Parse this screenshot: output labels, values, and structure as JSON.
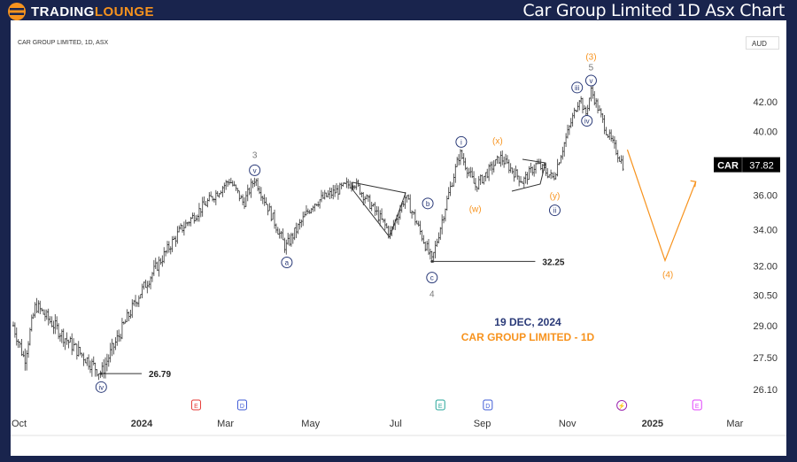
{
  "header": {
    "brand_main": "TRADING",
    "brand_accent": "LOUNGE",
    "title": "Car Group Limited 1D Asx Chart"
  },
  "chart_meta": {
    "symbol_line": "CAR GROUP LIMITED, 1D, ASX",
    "currency": "AUD",
    "ticker": "CAR",
    "last_price": "37.82"
  },
  "annotation": {
    "date": "19 DEC, 2024",
    "subtitle": "CAR GROUP LIMITED - 1D"
  },
  "colors": {
    "frame": "#19244d",
    "orange": "#f7931e",
    "navy": "#2a3a78",
    "wave_gray": "#777777"
  },
  "chart_data": {
    "type": "ohlc",
    "scale": "log",
    "title": "Car Group Limited 1D Asx Chart",
    "y_ticks": [
      "42.00",
      "40.00",
      "36.00",
      "34.00",
      "32.00",
      "30.50",
      "29.00",
      "27.50",
      "26.10"
    ],
    "y_tick_values": [
      42,
      40,
      36,
      34,
      32,
      30.5,
      29,
      27.5,
      26.1
    ],
    "x_ticks": [
      {
        "label": "Oct",
        "day": 0
      },
      {
        "label": "2024",
        "day": 92
      },
      {
        "label": "Mar",
        "day": 152
      },
      {
        "label": "May",
        "day": 213
      },
      {
        "label": "Jul",
        "day": 274
      },
      {
        "label": "Sep",
        "day": 336
      },
      {
        "label": "Nov",
        "day": 397
      },
      {
        "label": "2025",
        "day": 458
      },
      {
        "label": "Mar",
        "day": 517
      }
    ],
    "ylim": [
      25.6,
      45
    ],
    "xlim": [
      0,
      555
    ],
    "price_pivots": [
      [
        0,
        29.0
      ],
      [
        8,
        27.4
      ],
      [
        16,
        30.0
      ],
      [
        40,
        28.2
      ],
      [
        63,
        26.79
      ],
      [
        90,
        30.5
      ],
      [
        120,
        34.0
      ],
      [
        155,
        36.9
      ],
      [
        165,
        35.5
      ],
      [
        173,
        37.0
      ],
      [
        195,
        33.0
      ],
      [
        215,
        35.5
      ],
      [
        244,
        36.8
      ],
      [
        270,
        33.8
      ],
      [
        281,
        35.9
      ],
      [
        300,
        32.25
      ],
      [
        320,
        38.6
      ],
      [
        331,
        36.5
      ],
      [
        349,
        38.3
      ],
      [
        365,
        36.8
      ],
      [
        375,
        37.9
      ],
      [
        387,
        37.0
      ],
      [
        406,
        42.4
      ],
      [
        410,
        41.0
      ],
      [
        414,
        42.8
      ],
      [
        425,
        40.0
      ],
      [
        437,
        37.82
      ]
    ],
    "levels": [
      {
        "label": "32.25",
        "value": 32.25,
        "from_day": 300,
        "to_day": 374
      },
      {
        "label": "26.79",
        "value": 26.79,
        "from_day": 63,
        "to_day": 92
      }
    ],
    "projection": [
      [
        440,
        38.8
      ],
      [
        467,
        32.3
      ],
      [
        489,
        36.8
      ]
    ],
    "wave_labels": [
      {
        "text": "3",
        "day": 173,
        "price": 38.5,
        "style": "gray"
      },
      {
        "text": "v",
        "day": 173,
        "price": 37.5,
        "style": "circle"
      },
      {
        "text": "a",
        "day": 196,
        "price": 32.2,
        "style": "circle"
      },
      {
        "text": "iv",
        "day": 63,
        "price": 26.2,
        "style": "circle"
      },
      {
        "text": "b",
        "day": 297,
        "price": 35.5,
        "style": "circle"
      },
      {
        "text": "c",
        "day": 300,
        "price": 31.4,
        "style": "circle"
      },
      {
        "text": "4",
        "day": 300,
        "price": 30.6,
        "style": "gray"
      },
      {
        "text": "i",
        "day": 321,
        "price": 39.3,
        "style": "circle"
      },
      {
        "text": "(x)",
        "day": 347,
        "price": 39.4,
        "style": "orange"
      },
      {
        "text": "(w)",
        "day": 331,
        "price": 35.2,
        "style": "orange"
      },
      {
        "text": "(y)",
        "day": 388,
        "price": 36.0,
        "style": "orange"
      },
      {
        "text": "ii",
        "day": 388,
        "price": 35.1,
        "style": "circle"
      },
      {
        "text": "iii",
        "day": 404,
        "price": 43.0,
        "style": "circle"
      },
      {
        "text": "iv",
        "day": 411,
        "price": 40.7,
        "style": "circle"
      },
      {
        "text": "v",
        "day": 414,
        "price": 43.5,
        "style": "circle"
      },
      {
        "text": "5",
        "day": 414,
        "price": 44.5,
        "style": "gray"
      },
      {
        "text": "(3)",
        "day": 414,
        "price": 45.3,
        "style": "orange"
      },
      {
        "text": "(4)",
        "day": 469,
        "price": 31.6,
        "style": "orange"
      }
    ],
    "events": [
      {
        "text": "E",
        "day": 131,
        "color": "#e53935"
      },
      {
        "text": "D",
        "day": 164,
        "color": "#3f5bd6"
      },
      {
        "text": "E",
        "day": 306,
        "color": "#26a69a"
      },
      {
        "text": "D",
        "day": 340,
        "color": "#3f5bd6"
      },
      {
        "text": "⚡",
        "day": 436,
        "color": "#9c27b0"
      },
      {
        "text": "E",
        "day": 490,
        "color": "#e040fb"
      }
    ]
  }
}
